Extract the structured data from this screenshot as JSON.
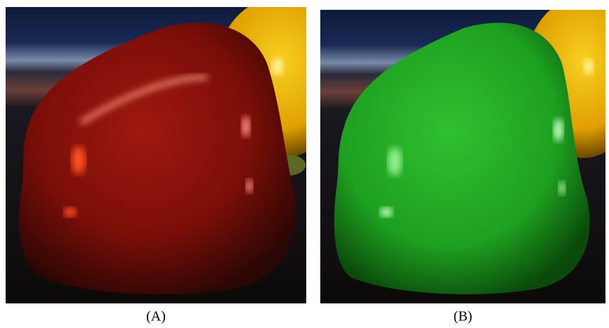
{
  "panels": [
    {
      "caption": "(A)"
    },
    {
      "caption": "(B)"
    }
  ]
}
